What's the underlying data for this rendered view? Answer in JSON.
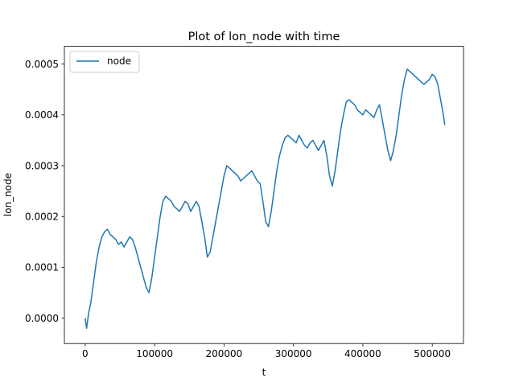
{
  "chart_data": {
    "type": "line",
    "title": "Plot of lon_node with time",
    "xlabel": "t",
    "ylabel": "lon_node",
    "xlim": [
      -30000,
      545000
    ],
    "ylim": [
      -5e-05,
      0.000535
    ],
    "x_ticks": [
      0,
      100000,
      200000,
      300000,
      400000,
      500000
    ],
    "x_tick_labels": [
      "0",
      "100000",
      "200000",
      "300000",
      "400000",
      "500000"
    ],
    "y_ticks": [
      0.0,
      0.0001,
      0.0002,
      0.0003,
      0.0004,
      0.0005
    ],
    "y_tick_labels": [
      "0.0000",
      "0.0001",
      "0.0002",
      "0.0003",
      "0.0004",
      "0.0005"
    ],
    "grid": false,
    "legend": {
      "position": "top-left",
      "entries": [
        "node"
      ]
    },
    "series": [
      {
        "name": "node",
        "color": "#1f77b4",
        "x": [
          0,
          2000,
          5000,
          8000,
          12000,
          16000,
          20000,
          24000,
          28000,
          32000,
          36000,
          40000,
          44000,
          48000,
          52000,
          56000,
          60000,
          64000,
          68000,
          72000,
          76000,
          80000,
          84000,
          88000,
          92000,
          96000,
          100000,
          104000,
          108000,
          112000,
          116000,
          120000,
          124000,
          128000,
          132000,
          136000,
          140000,
          144000,
          148000,
          152000,
          156000,
          160000,
          164000,
          168000,
          172000,
          176000,
          180000,
          184000,
          188000,
          192000,
          196000,
          200000,
          204000,
          208000,
          212000,
          216000,
          220000,
          224000,
          228000,
          232000,
          236000,
          240000,
          244000,
          248000,
          252000,
          256000,
          260000,
          264000,
          268000,
          272000,
          276000,
          280000,
          284000,
          288000,
          292000,
          296000,
          300000,
          304000,
          308000,
          312000,
          316000,
          320000,
          324000,
          328000,
          332000,
          336000,
          340000,
          344000,
          348000,
          352000,
          356000,
          360000,
          364000,
          368000,
          372000,
          376000,
          380000,
          384000,
          388000,
          392000,
          396000,
          400000,
          404000,
          408000,
          412000,
          416000,
          420000,
          424000,
          428000,
          432000,
          436000,
          440000,
          444000,
          448000,
          452000,
          456000,
          460000,
          464000,
          468000,
          472000,
          476000,
          480000,
          484000,
          488000,
          492000,
          496000,
          500000,
          504000,
          508000,
          512000,
          516000,
          518000
        ],
        "y": [
          0.0,
          -2e-05,
          1e-05,
          3e-05,
          7e-05,
          0.00011,
          0.00014,
          0.00016,
          0.00017,
          0.000175,
          0.000165,
          0.00016,
          0.000155,
          0.000145,
          0.00015,
          0.00014,
          0.00015,
          0.00016,
          0.000155,
          0.00014,
          0.00012,
          0.0001,
          8e-05,
          6e-05,
          5e-05,
          8e-05,
          0.00012,
          0.00016,
          0.0002,
          0.00023,
          0.00024,
          0.000235,
          0.00023,
          0.00022,
          0.000215,
          0.00021,
          0.00022,
          0.00023,
          0.000225,
          0.00021,
          0.00022,
          0.00023,
          0.00022,
          0.00019,
          0.00016,
          0.00012,
          0.00013,
          0.00016,
          0.00019,
          0.00022,
          0.00025,
          0.00028,
          0.0003,
          0.000295,
          0.00029,
          0.000285,
          0.00028,
          0.00027,
          0.000275,
          0.00028,
          0.000285,
          0.00029,
          0.00028,
          0.00027,
          0.000265,
          0.00023,
          0.00019,
          0.00018,
          0.00021,
          0.00025,
          0.00029,
          0.00032,
          0.00034,
          0.000355,
          0.00036,
          0.000355,
          0.00035,
          0.000345,
          0.00036,
          0.00035,
          0.00034,
          0.000335,
          0.000345,
          0.00035,
          0.00034,
          0.00033,
          0.00034,
          0.00035,
          0.00032,
          0.00028,
          0.00026,
          0.00029,
          0.00033,
          0.00037,
          0.0004,
          0.000425,
          0.00043,
          0.000425,
          0.00042,
          0.00041,
          0.000405,
          0.0004,
          0.00041,
          0.000405,
          0.0004,
          0.000395,
          0.00041,
          0.00042,
          0.00039,
          0.00036,
          0.00033,
          0.00031,
          0.00033,
          0.00036,
          0.0004,
          0.00044,
          0.00047,
          0.00049,
          0.000485,
          0.00048,
          0.000475,
          0.00047,
          0.000465,
          0.00046,
          0.000465,
          0.00047,
          0.00048,
          0.000475,
          0.00046,
          0.00043,
          0.0004,
          0.00038
        ]
      }
    ]
  }
}
